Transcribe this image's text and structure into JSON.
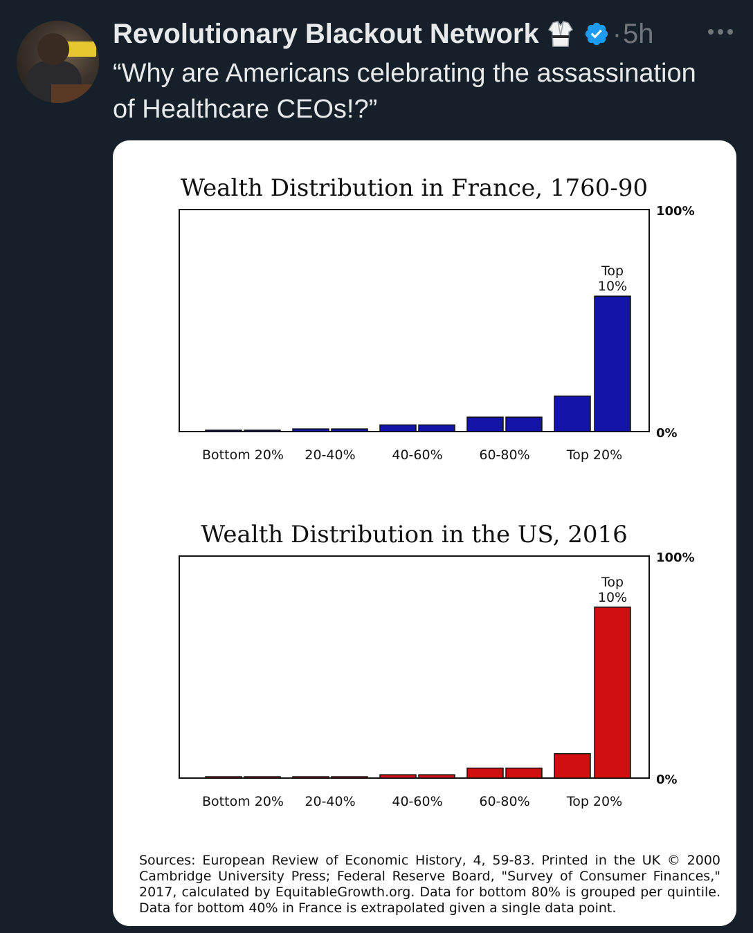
{
  "tweet": {
    "display_name": "Revolutionary Blackout Network",
    "separator": "·",
    "time": "5h",
    "text": "“Why are Americans celebrating the assassination of Healthcare CEOs!?”",
    "icons": {
      "badge": "martial-arts-gi-icon",
      "verified": "verified-badge-icon",
      "more": "more-options-icon"
    },
    "colors": {
      "background": "#16202a",
      "text": "#e7e9ea",
      "muted": "#71767b",
      "verified": "#1d9bf0"
    }
  },
  "chart_data": [
    {
      "type": "bar",
      "title": "Wealth Distribution in France, 1760-90",
      "categories": [
        "Bottom 20%",
        "20-40%",
        "40-60%",
        "60-80%",
        "Top 20%"
      ],
      "bars": [
        {
          "group": "Bottom 20%",
          "value": 0.5
        },
        {
          "group": "Bottom 20%",
          "value": 0.5
        },
        {
          "group": "20-40%",
          "value": 1.2
        },
        {
          "group": "20-40%",
          "value": 1.2
        },
        {
          "group": "40-60%",
          "value": 3
        },
        {
          "group": "40-60%",
          "value": 3
        },
        {
          "group": "60-80%",
          "value": 6.5
        },
        {
          "group": "60-80%",
          "value": 6.5
        },
        {
          "group": "Top 20%",
          "value": 16
        },
        {
          "group": "Top 20%",
          "value": 61,
          "label": "Top 10%"
        }
      ],
      "ylim": [
        0,
        100
      ],
      "ytick_top": "100%",
      "ytick_bottom": "0%",
      "color": "#1414a8"
    },
    {
      "type": "bar",
      "title": "Wealth Distribution in the US, 2016",
      "categories": [
        "Bottom 20%",
        "20-40%",
        "40-60%",
        "60-80%",
        "Top 20%"
      ],
      "bars": [
        {
          "group": "Bottom 20%",
          "value": 0.2
        },
        {
          "group": "Bottom 20%",
          "value": 0.2
        },
        {
          "group": "20-40%",
          "value": 0.3
        },
        {
          "group": "20-40%",
          "value": 0.3
        },
        {
          "group": "40-60%",
          "value": 1.5
        },
        {
          "group": "40-60%",
          "value": 1.5
        },
        {
          "group": "60-80%",
          "value": 4.5
        },
        {
          "group": "60-80%",
          "value": 4.5
        },
        {
          "group": "Top 20%",
          "value": 11
        },
        {
          "group": "Top 20%",
          "value": 77,
          "label": "Top 10%"
        }
      ],
      "ylim": [
        0,
        100
      ],
      "ytick_top": "100%",
      "ytick_bottom": "0%",
      "color": "#d01010"
    }
  ],
  "sources_text": "Sources: European Review of Economic History, 4, 59-83. Printed in the UK © 2000 Cambridge University Press; Federal Reserve Board, \"Survey of Consumer Finances,\" 2017, calculated by EquitableGrowth.org. Data for bottom 80% is grouped per quintile. Data for bottom 40% in France is extrapolated given a single data point."
}
